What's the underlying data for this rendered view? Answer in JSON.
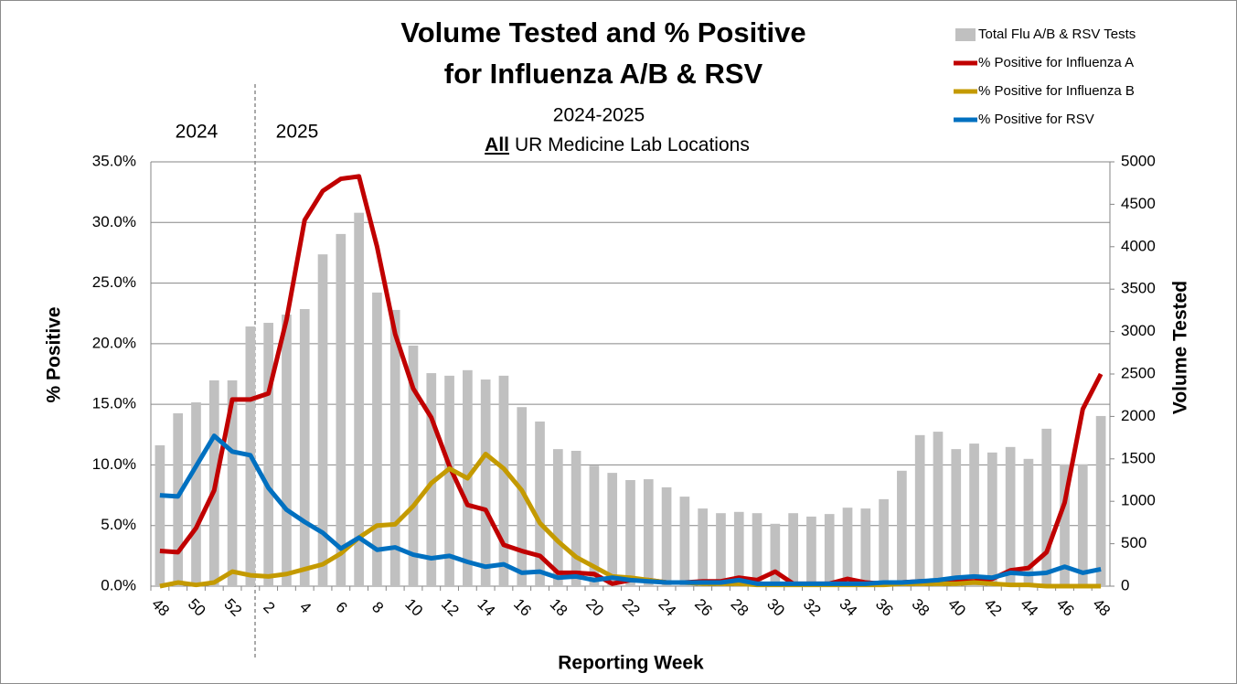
{
  "chart_data": {
    "type": "bar",
    "title": [
      "Volume Tested and % Positive",
      "for Influenza A/B & RSV"
    ],
    "subtitle": "2024-2025",
    "subtitle2": [
      "All",
      "UR Medicine Lab Locations"
    ],
    "annotations": [
      "2024",
      "2025"
    ],
    "x_label": "Reporting Week",
    "y_label": "% Positive",
    "y2_label": "Volume Tested",
    "categories": [
      "48",
      null,
      "50",
      null,
      "52",
      null,
      "2",
      null,
      "4",
      null,
      "6",
      null,
      "8",
      null,
      "10",
      null,
      "12",
      null,
      "14",
      null,
      "16",
      null,
      "18",
      null,
      "20",
      null,
      "22",
      null,
      "24",
      null,
      "26",
      null,
      "28",
      null,
      "30",
      null,
      "32",
      null,
      "34",
      null,
      "36",
      null,
      "38",
      null,
      "40",
      null,
      "42",
      null,
      "44",
      null,
      "46",
      null,
      "48"
    ],
    "series": [
      {
        "name": "Total Flu A/B & RSV Tests",
        "type": "bar",
        "axis": "y2",
        "color": "#c0c0c0",
        "values": [
          1660,
          2037,
          2166,
          2425,
          2425,
          3060,
          3103,
          3200,
          3265,
          3910,
          4150,
          4400,
          3460,
          3255,
          2835,
          2510,
          2480,
          2545,
          2435,
          2480,
          2110,
          1940,
          1615,
          1595,
          1420,
          1335,
          1250,
          1260,
          1165,
          1055,
          915,
          860,
          875,
          860,
          735,
          860,
          820,
          850,
          925,
          915,
          1025,
          1360,
          1780,
          1820,
          1615,
          1680,
          1575,
          1640,
          1500,
          1855,
          1435,
          1435,
          2005
        ]
      },
      {
        "name": "% Positive for Influenza A",
        "type": "line",
        "color": "#c00000",
        "values": [
          2.9,
          2.8,
          4.8,
          7.9,
          15.4,
          15.4,
          15.9,
          22,
          30.2,
          32.6,
          33.6,
          33.8,
          28,
          20.8,
          16.3,
          13.9,
          9.9,
          6.7,
          6.3,
          3.4,
          2.9,
          2.5,
          1.1,
          1.1,
          1.0,
          0.2,
          0.5,
          0.5,
          0.3,
          0.3,
          0.4,
          0.4,
          0.7,
          0.5,
          1.2,
          0.2,
          0.2,
          0.2,
          0.6,
          0.3,
          0.2,
          0.3,
          0.4,
          0.4,
          0.4,
          0.4,
          0.6,
          1.3,
          1.5,
          2.8,
          6.9,
          14.6,
          17.5
        ]
      },
      {
        "name": "% Positive for Influenza B",
        "type": "line",
        "color": "#c49a00",
        "values": [
          0,
          0.3,
          0.1,
          0.3,
          1.2,
          0.9,
          0.8,
          1.0,
          1.4,
          1.8,
          2.7,
          4.0,
          5.0,
          5.1,
          6.6,
          8.5,
          9.7,
          8.9,
          10.9,
          9.7,
          7.9,
          5.2,
          3.7,
          2.4,
          1.6,
          0.8,
          0.7,
          0.5,
          0.3,
          0.3,
          0.2,
          0.2,
          0.2,
          0.1,
          0.1,
          0.1,
          0.1,
          0.1,
          0.1,
          0.1,
          0.1,
          0.2,
          0.2,
          0.2,
          0.2,
          0.3,
          0.2,
          0.1,
          0.1,
          0,
          0,
          0,
          0
        ]
      },
      {
        "name": "% Positive for RSV",
        "type": "line",
        "color": "#0070c0",
        "values": [
          7.5,
          7.4,
          9.9,
          12.4,
          11.1,
          10.8,
          8.1,
          6.3,
          5.3,
          4.4,
          3.1,
          4.0,
          3.0,
          3.2,
          2.6,
          2.3,
          2.5,
          2.0,
          1.6,
          1.8,
          1.1,
          1.2,
          0.7,
          0.8,
          0.5,
          0.7,
          0.5,
          0.4,
          0.3,
          0.3,
          0.3,
          0.3,
          0.5,
          0.2,
          0.2,
          0.2,
          0.2,
          0.2,
          0.2,
          0.2,
          0.3,
          0.3,
          0.4,
          0.5,
          0.7,
          0.8,
          0.7,
          1.1,
          1.0,
          1.1,
          1.6,
          1.1,
          1.4
        ]
      }
    ],
    "ylim": [
      0,
      35
    ],
    "yticks": [
      {
        "value": 0,
        "label": "0.0%"
      },
      {
        "value": 5,
        "label": "5.0%"
      },
      {
        "value": 10,
        "label": "10.0%"
      },
      {
        "value": 15,
        "label": "15.0%"
      },
      {
        "value": 20,
        "label": "20.0%"
      },
      {
        "value": 25,
        "label": "25.0%"
      },
      {
        "value": 30,
        "label": "30.0%"
      },
      {
        "value": 35,
        "label": "35.0%"
      }
    ],
    "y2lim": [
      0,
      5000
    ],
    "y2ticks": [
      0,
      500,
      1000,
      1500,
      2000,
      2500,
      3000,
      3500,
      4000,
      4500,
      5000
    ],
    "grid": true,
    "legend": "upper right"
  }
}
